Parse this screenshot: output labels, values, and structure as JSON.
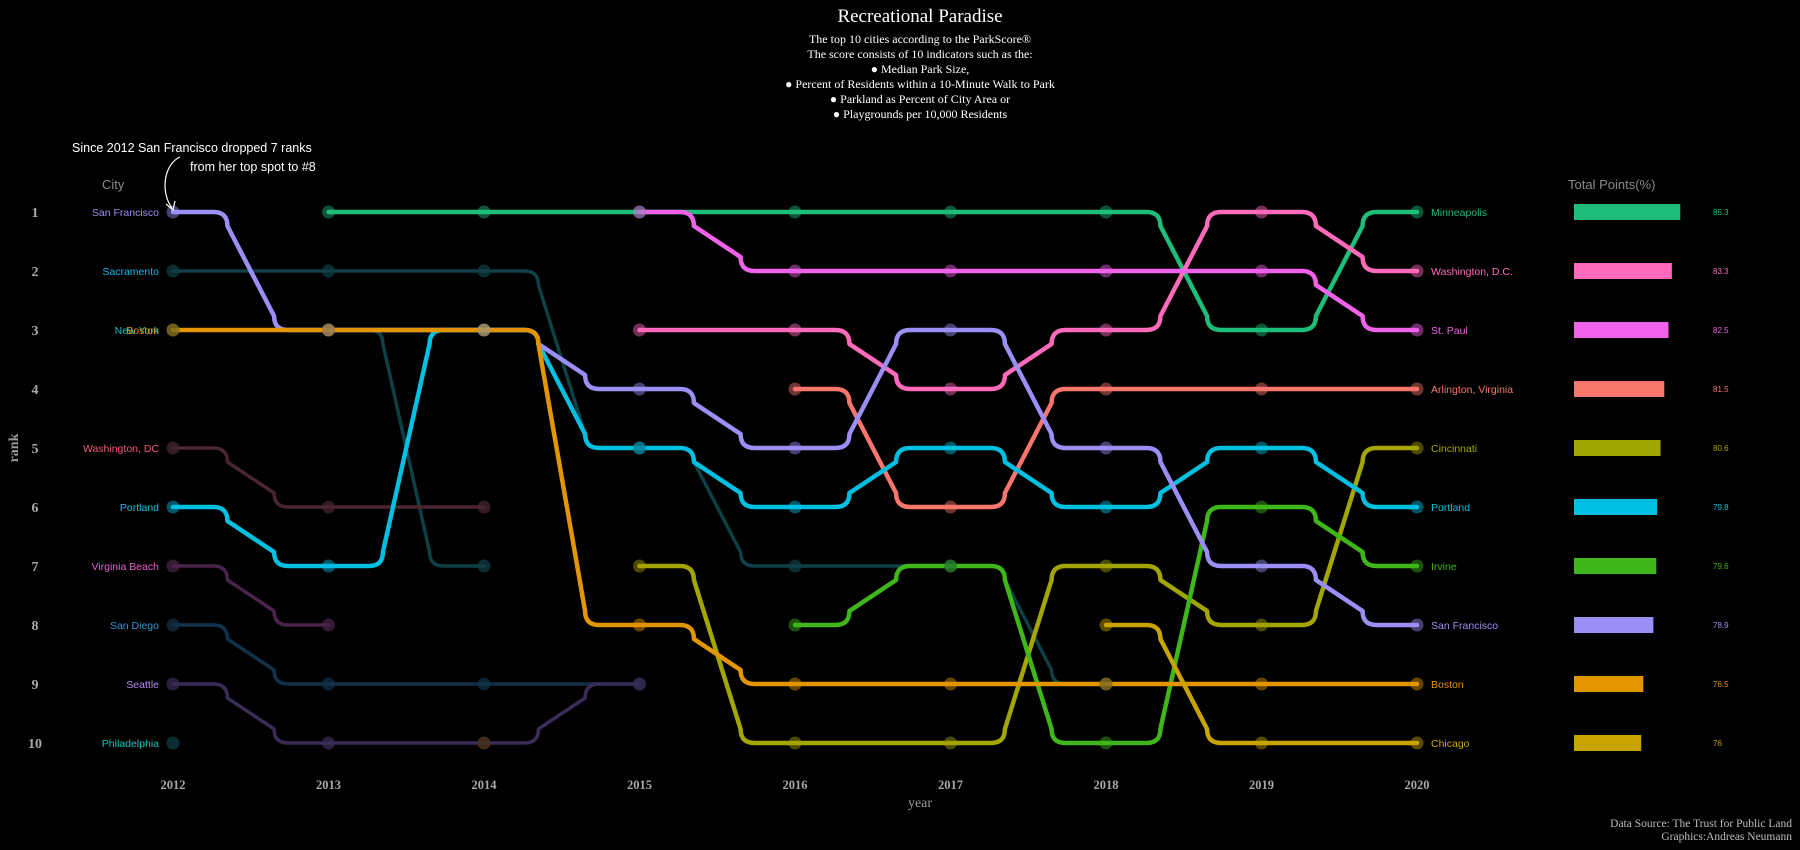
{
  "title": "Recreational Paradise",
  "subtitle_lines": [
    "The top 10 cities according to the ParkScore®",
    "The score consists of 10 indicators such as the:",
    "● Median Park Size,",
    "● Percent of Residents within a 10-Minute Walk to Park",
    "● Parkland as Percent of City Area  or",
    "● Playgrounds per 10,000 Residents"
  ],
  "annotation_lines": [
    "Since 2012 San Francisco dropped 7 ranks",
    "from her top spot to #8"
  ],
  "city_header": "City",
  "points_header": "Total Points(%)",
  "source_lines": [
    "Data Source: The Trust for Public Land",
    "Graphics:Andreas Neumann"
  ],
  "chart_data": {
    "type": "line",
    "xlabel": "year",
    "ylabel": "rank",
    "years": [
      2012,
      2013,
      2014,
      2015,
      2016,
      2017,
      2018,
      2019,
      2020
    ],
    "ranks": [
      1,
      2,
      3,
      4,
      5,
      6,
      7,
      8,
      9,
      10
    ],
    "left_labels": [
      {
        "name": "San Francisco",
        "rank": 1,
        "color": "#9b8ff5"
      },
      {
        "name": "Sacramento",
        "rank": 2,
        "color": "#19b5e8"
      },
      {
        "name": "New York",
        "rank": 3,
        "color": "#10c2b0"
      },
      {
        "name": "Boston",
        "rank": 3,
        "color": "#e0900a"
      },
      {
        "name": "Washington, DC",
        "rank": 5,
        "color": "#f25c7a"
      },
      {
        "name": "Portland",
        "rank": 6,
        "color": "#19c0e6"
      },
      {
        "name": "Virginia Beach",
        "rank": 7,
        "color": "#ee5fd2"
      },
      {
        "name": "San Diego",
        "rank": 8,
        "color": "#2f9ad6"
      },
      {
        "name": "Seattle",
        "rank": 9,
        "color": "#b48af0"
      },
      {
        "name": "Philadelphia",
        "rank": 10,
        "color": "#12c6ba"
      }
    ],
    "series": [
      {
        "name": "Minneapolis",
        "color": "#1ebd7a",
        "highlight": true,
        "x": [
          2013,
          2014,
          2015,
          2016,
          2017,
          2018,
          2019,
          2020
        ],
        "y": [
          1,
          1,
          1,
          1,
          1,
          1,
          3,
          1
        ]
      },
      {
        "name": "Washington, D.C.",
        "color": "#ff6aba",
        "highlight": true,
        "x": [
          2015,
          2016,
          2017,
          2018,
          2019,
          2020
        ],
        "y": [
          3,
          3,
          4,
          3,
          1,
          2
        ]
      },
      {
        "name": "St. Paul",
        "color": "#f062ea",
        "highlight": true,
        "x": [
          2015,
          2016,
          2017,
          2018,
          2019,
          2020
        ],
        "y": [
          1,
          2,
          2,
          2,
          2,
          3
        ]
      },
      {
        "name": "Arlington, Virginia",
        "color": "#f8766d",
        "highlight": true,
        "x": [
          2016,
          2017,
          2018,
          2019,
          2020
        ],
        "y": [
          4,
          6,
          4,
          4,
          4
        ]
      },
      {
        "name": "Cincinnati",
        "color": "#a3a500",
        "highlight": true,
        "x": [
          2015,
          2016,
          2017,
          2018,
          2019,
          2020
        ],
        "y": [
          7,
          10,
          10,
          7,
          8,
          5
        ]
      },
      {
        "name": "Portland",
        "color": "#00bfe0",
        "highlight": true,
        "x": [
          2012,
          2013,
          2014,
          2015,
          2016,
          2017,
          2018,
          2019,
          2020
        ],
        "y": [
          6,
          7,
          3,
          5,
          6,
          5,
          6,
          5,
          6
        ]
      },
      {
        "name": "Irvine",
        "color": "#3fb619",
        "highlight": true,
        "x": [
          2016,
          2017,
          2018,
          2019,
          2020
        ],
        "y": [
          8,
          7,
          10,
          6,
          7
        ]
      },
      {
        "name": "San Francisco",
        "color": "#9b8ff5",
        "highlight": true,
        "x": [
          2012,
          2013,
          2014,
          2015,
          2016,
          2017,
          2018,
          2019,
          2020
        ],
        "y": [
          1,
          3,
          3,
          4,
          5,
          3,
          5,
          7,
          8
        ]
      },
      {
        "name": "Boston",
        "color": "#e39500",
        "highlight": true,
        "x": [
          2012,
          2013,
          2014,
          2015,
          2016,
          2017,
          2018,
          2019,
          2020
        ],
        "y": [
          3,
          3,
          3,
          8,
          9,
          9,
          9,
          9,
          9
        ]
      },
      {
        "name": "Chicago",
        "color": "#c8a400",
        "highlight": true,
        "x": [
          2018,
          2019,
          2020
        ],
        "y": [
          8,
          10,
          10
        ]
      },
      {
        "name": "Sacramento",
        "color": "#0f4046",
        "highlight": false,
        "x": [
          2012,
          2013,
          2014,
          2015,
          2016,
          2017,
          2018
        ],
        "y": [
          2,
          2,
          2,
          5,
          7,
          7,
          9
        ]
      },
      {
        "name": "New York",
        "color": "#0f4046",
        "highlight": false,
        "x": [
          2012,
          2013,
          2014
        ],
        "y": [
          3,
          3,
          7
        ]
      },
      {
        "name": "Washington, DC",
        "color": "#4a2530",
        "highlight": false,
        "x": [
          2012,
          2013,
          2014
        ],
        "y": [
          5,
          6,
          6
        ]
      },
      {
        "name": "Virginia Beach",
        "color": "#4a2348",
        "highlight": false,
        "x": [
          2012,
          2013
        ],
        "y": [
          7,
          8
        ]
      },
      {
        "name": "San Diego",
        "color": "#13324a",
        "highlight": false,
        "x": [
          2012,
          2013,
          2014,
          2015
        ],
        "y": [
          8,
          9,
          9,
          9
        ]
      },
      {
        "name": "Seattle",
        "color": "#3a2c58",
        "highlight": false,
        "x": [
          2012,
          2013,
          2014,
          2015
        ],
        "y": [
          9,
          10,
          10,
          9
        ]
      },
      {
        "name": "Philadelphia",
        "color": "#0f4046",
        "highlight": false,
        "x": [
          2012
        ],
        "y": [
          10
        ]
      },
      {
        "name": "Dropout 2014",
        "color": "#4a3010",
        "highlight": false,
        "x": [
          2014
        ],
        "y": [
          10
        ]
      }
    ],
    "totals": [
      {
        "name": "Minneapolis",
        "value": 85.3,
        "color": "#1ebd7a"
      },
      {
        "name": "Washington, D.C.",
        "value": 83.3,
        "color": "#ff6aba"
      },
      {
        "name": "St. Paul",
        "value": 82.5,
        "color": "#f062ea"
      },
      {
        "name": "Arlington, Virginia",
        "value": 81.5,
        "color": "#f8766d"
      },
      {
        "name": "Cincinnati",
        "value": 80.6,
        "color": "#a3a500"
      },
      {
        "name": "Portland",
        "value": 79.8,
        "color": "#00bfe0"
      },
      {
        "name": "Irvine",
        "value": 79.6,
        "color": "#3fb619"
      },
      {
        "name": "San Francisco",
        "value": 78.9,
        "color": "#9b8ff5"
      },
      {
        "name": "Boston",
        "value": 76.5,
        "color": "#e39500"
      },
      {
        "name": "Chicago",
        "value": 76,
        "color": "#c8a400"
      }
    ]
  }
}
